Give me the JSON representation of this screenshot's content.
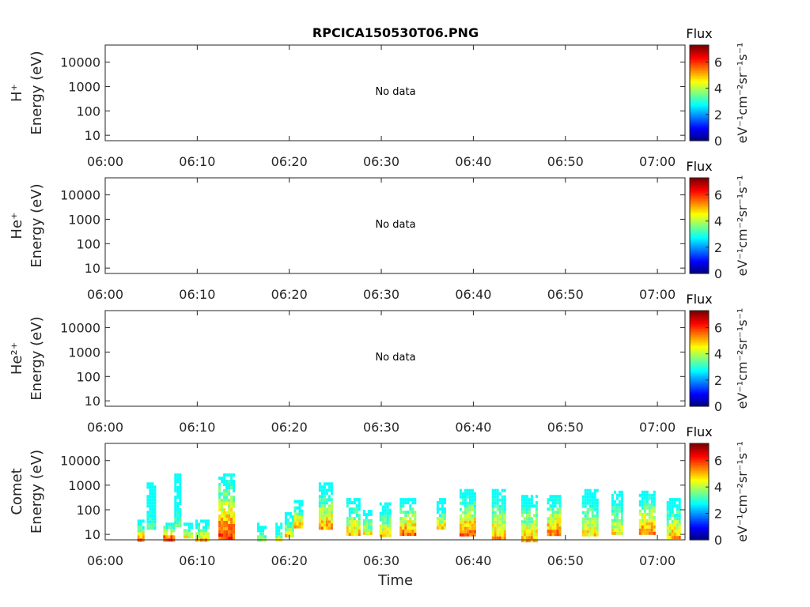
{
  "chart_data": {
    "type": "heatmap",
    "title": "RPCICA150530T06.PNG",
    "xlabel": "Time",
    "x_tick_labels": [
      "06:00",
      "06:10",
      "06:20",
      "06:30",
      "06:40",
      "06:50",
      "07:00"
    ],
    "x_range_minutes": [
      0,
      63
    ],
    "y_scale": "log",
    "y_range_eV": [
      6,
      50000
    ],
    "y_tick_labels": [
      "10",
      "100",
      "1000",
      "10000"
    ],
    "colorbar": {
      "title": "Flux",
      "label": "eV⁻¹cm⁻²sr⁻¹s⁻¹",
      "range": [
        0,
        7.3
      ],
      "tick_labels": [
        "0",
        "2",
        "4",
        "6"
      ],
      "colormap": "jet"
    },
    "panels": [
      {
        "ylabel_species": "H⁺",
        "ylabel": "Energy (eV)",
        "status_text": "No data",
        "data": []
      },
      {
        "ylabel_species": "He⁺",
        "ylabel": "Energy (eV)",
        "status_text": "No data",
        "data": []
      },
      {
        "ylabel_species": "He²⁺",
        "ylabel": "Energy (eV)",
        "status_text": "No data",
        "data": []
      },
      {
        "ylabel_species": "Comet",
        "ylabel": "Energy (eV)",
        "status_text": "",
        "data_note": "bursts of ion flux: time in minutes after 06:00, energy range in eV, peak log-flux",
        "data": [
          {
            "t": [
              3.5,
              4.2
            ],
            "e": [
              6,
              40
            ],
            "peak": 6.0
          },
          {
            "t": [
              4.5,
              5.5
            ],
            "e": [
              20,
              1300
            ],
            "peak": 3.5
          },
          {
            "t": [
              6.3,
              7.5
            ],
            "e": [
              6,
              30
            ],
            "peak": 6.8
          },
          {
            "t": [
              7.5,
              8.2
            ],
            "e": [
              20,
              3000
            ],
            "peak": 3.5
          },
          {
            "t": [
              8.5,
              9.5
            ],
            "e": [
              8,
              30
            ],
            "peak": 5.0
          },
          {
            "t": [
              9.8,
              11.2
            ],
            "e": [
              6,
              40
            ],
            "peak": 5.5
          },
          {
            "t": [
              12.3,
              14.0
            ],
            "e": [
              6,
              3000
            ],
            "peak": 6.5
          },
          {
            "t": [
              16.5,
              17.5
            ],
            "e": [
              6,
              30
            ],
            "peak": 4.5
          },
          {
            "t": [
              18.5,
              19.2
            ],
            "e": [
              6,
              30
            ],
            "peak": 4.5
          },
          {
            "t": [
              19.5,
              20.5
            ],
            "e": [
              10,
              80
            ],
            "peak": 5.0
          },
          {
            "t": [
              20.5,
              21.5
            ],
            "e": [
              20,
              250
            ],
            "peak": 5.5
          },
          {
            "t": [
              23.2,
              24.5
            ],
            "e": [
              20,
              1300
            ],
            "peak": 5.5
          },
          {
            "t": [
              26.2,
              27.5
            ],
            "e": [
              10,
              300
            ],
            "peak": 5.5
          },
          {
            "t": [
              28.0,
              29.0
            ],
            "e": [
              10,
              100
            ],
            "peak": 5.0
          },
          {
            "t": [
              29.8,
              31.0
            ],
            "e": [
              10,
              200
            ],
            "peak": 5.0
          },
          {
            "t": [
              32.0,
              33.8
            ],
            "e": [
              10,
              300
            ],
            "peak": 6.0
          },
          {
            "t": [
              36.0,
              37.0
            ],
            "e": [
              20,
              300
            ],
            "peak": 5.0
          },
          {
            "t": [
              38.5,
              40.3
            ],
            "e": [
              10,
              700
            ],
            "peak": 6.0
          },
          {
            "t": [
              42.0,
              43.5
            ],
            "e": [
              8,
              700
            ],
            "peak": 5.5
          },
          {
            "t": [
              45.2,
              47.0
            ],
            "e": [
              6,
              400
            ],
            "peak": 5.5
          },
          {
            "t": [
              48.0,
              49.5
            ],
            "e": [
              10,
              400
            ],
            "peak": 6.0
          },
          {
            "t": [
              51.8,
              53.5
            ],
            "e": [
              10,
              700
            ],
            "peak": 5.0
          },
          {
            "t": [
              55.0,
              56.2
            ],
            "e": [
              10,
              600
            ],
            "peak": 5.0
          },
          {
            "t": [
              58.0,
              59.8
            ],
            "e": [
              10,
              600
            ],
            "peak": 6.0
          },
          {
            "t": [
              61.0,
              62.5
            ],
            "e": [
              8,
              300
            ],
            "peak": 5.5
          }
        ]
      }
    ]
  }
}
